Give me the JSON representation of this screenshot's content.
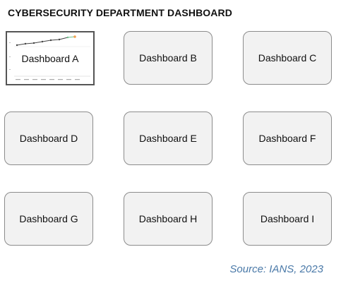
{
  "title": "CYBERSECURITY DEPARTMENT DASHBOARD",
  "dashboards": [
    {
      "label": "Dashboard A"
    },
    {
      "label": "Dashboard B"
    },
    {
      "label": "Dashboard C"
    },
    {
      "label": "Dashboard D"
    },
    {
      "label": "Dashboard E"
    },
    {
      "label": "Dashboard F"
    },
    {
      "label": "Dashboard G"
    },
    {
      "label": "Dashboard H"
    },
    {
      "label": "Dashboard I"
    }
  ],
  "source": "Source: IANS, 2023",
  "colors": {
    "card_fill": "#f2f2f2",
    "card_border": "#8c8c8c",
    "source_text": "#4a79a8",
    "preview_line": "#555555",
    "preview_accent_green": "#6dbf8a",
    "preview_accent_orange": "#f0a050"
  }
}
